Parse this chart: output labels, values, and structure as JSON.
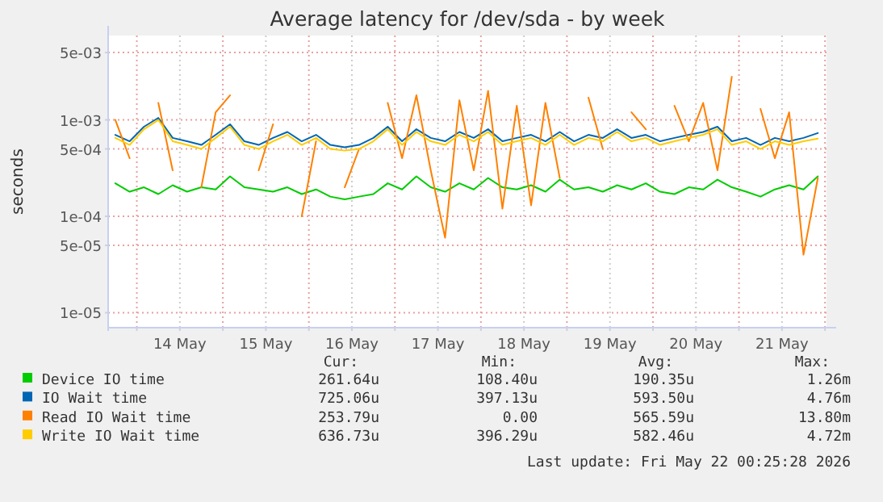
{
  "chart_data": {
    "type": "line",
    "title": "Average latency for /dev/sda - by week",
    "ylabel": "seconds",
    "log": "y",
    "grid": true,
    "legend": "bottom",
    "xlim": [
      "2026-05-13T16:00",
      "2026-05-22T00:25"
    ],
    "xticks": [
      {
        "value": "2026-05-14T00:00",
        "label": null
      },
      {
        "value": "2026-05-14T12:00",
        "label": "14 May"
      },
      {
        "value": "2026-05-15T00:00",
        "label": null
      },
      {
        "value": "2026-05-15T12:00",
        "label": "15 May"
      },
      {
        "value": "2026-05-16T00:00",
        "label": null
      },
      {
        "value": "2026-05-16T12:00",
        "label": "16 May"
      },
      {
        "value": "2026-05-17T00:00",
        "label": null
      },
      {
        "value": "2026-05-17T12:00",
        "label": "17 May"
      },
      {
        "value": "2026-05-18T00:00",
        "label": null
      },
      {
        "value": "2026-05-18T12:00",
        "label": "18 May"
      },
      {
        "value": "2026-05-19T00:00",
        "label": null
      },
      {
        "value": "2026-05-19T12:00",
        "label": "19 May"
      },
      {
        "value": "2026-05-20T00:00",
        "label": null
      },
      {
        "value": "2026-05-20T12:00",
        "label": "20 May"
      },
      {
        "value": "2026-05-21T00:00",
        "label": null
      },
      {
        "value": "2026-05-21T12:00",
        "label": "21 May"
      },
      {
        "value": "2026-05-22T00:00",
        "label": null
      }
    ],
    "ylim": [
      7e-06,
      0.0075
    ],
    "yticks": [
      {
        "value": 1e-05,
        "label": "1e-05"
      },
      {
        "value": 5e-05,
        "label": "5e-05"
      },
      {
        "value": 0.0001,
        "label": "1e-04"
      },
      {
        "value": 0.0005,
        "label": "5e-04"
      },
      {
        "value": 0.001,
        "label": "1e-03"
      },
      {
        "value": 0.005,
        "label": "5e-03"
      }
    ],
    "x": [
      "2026-05-13T18:00",
      "2026-05-13T22:00",
      "2026-05-14T02:00",
      "2026-05-14T06:00",
      "2026-05-14T10:00",
      "2026-05-14T14:00",
      "2026-05-14T18:00",
      "2026-05-14T22:00",
      "2026-05-15T02:00",
      "2026-05-15T06:00",
      "2026-05-15T10:00",
      "2026-05-15T14:00",
      "2026-05-15T18:00",
      "2026-05-15T22:00",
      "2026-05-16T02:00",
      "2026-05-16T06:00",
      "2026-05-16T10:00",
      "2026-05-16T14:00",
      "2026-05-16T18:00",
      "2026-05-16T22:00",
      "2026-05-17T02:00",
      "2026-05-17T06:00",
      "2026-05-17T10:00",
      "2026-05-17T14:00",
      "2026-05-17T18:00",
      "2026-05-17T22:00",
      "2026-05-18T02:00",
      "2026-05-18T06:00",
      "2026-05-18T10:00",
      "2026-05-18T14:00",
      "2026-05-18T18:00",
      "2026-05-18T22:00",
      "2026-05-19T02:00",
      "2026-05-19T06:00",
      "2026-05-19T10:00",
      "2026-05-19T14:00",
      "2026-05-19T18:00",
      "2026-05-19T22:00",
      "2026-05-20T02:00",
      "2026-05-20T06:00",
      "2026-05-20T10:00",
      "2026-05-20T14:00",
      "2026-05-20T18:00",
      "2026-05-20T22:00",
      "2026-05-21T02:00",
      "2026-05-21T06:00",
      "2026-05-21T10:00",
      "2026-05-21T14:00",
      "2026-05-21T18:00",
      "2026-05-21T22:00"
    ],
    "series": [
      {
        "name": "Device IO time",
        "color": "#00cc00",
        "values": [
          0.00022,
          0.00018,
          0.0002,
          0.00017,
          0.00021,
          0.00018,
          0.0002,
          0.00019,
          0.00026,
          0.0002,
          0.00019,
          0.00018,
          0.0002,
          0.00017,
          0.00019,
          0.00016,
          0.00015,
          0.00016,
          0.00017,
          0.00022,
          0.00019,
          0.00026,
          0.0002,
          0.00018,
          0.00022,
          0.00019,
          0.00025,
          0.0002,
          0.00019,
          0.00021,
          0.00018,
          0.00024,
          0.00019,
          0.0002,
          0.00018,
          0.00021,
          0.00019,
          0.00022,
          0.00018,
          0.00017,
          0.0002,
          0.00019,
          0.00024,
          0.0002,
          0.00018,
          0.00016,
          0.00019,
          0.00021,
          0.00019,
          0.00026
        ]
      },
      {
        "name": "IO Wait time",
        "color": "#0066b3",
        "values": [
          0.0007,
          0.0006,
          0.00085,
          0.00105,
          0.00065,
          0.0006,
          0.00055,
          0.0007,
          0.0009,
          0.0006,
          0.00055,
          0.00065,
          0.00075,
          0.0006,
          0.0007,
          0.00055,
          0.00052,
          0.00055,
          0.00065,
          0.00085,
          0.0006,
          0.0008,
          0.00065,
          0.0006,
          0.00075,
          0.00065,
          0.0008,
          0.0006,
          0.00065,
          0.0007,
          0.0006,
          0.00075,
          0.0006,
          0.0007,
          0.00065,
          0.0008,
          0.00065,
          0.0007,
          0.0006,
          0.00065,
          0.0007,
          0.00075,
          0.00085,
          0.0006,
          0.00065,
          0.00055,
          0.00065,
          0.0006,
          0.00065,
          0.00073
        ]
      },
      {
        "name": "Read IO Wait time",
        "color": "#ff8000",
        "values": [
          0.001,
          0.0004,
          null,
          0.0015,
          0.0003,
          null,
          0.0002,
          0.0012,
          0.0018,
          null,
          0.0003,
          0.0009,
          null,
          0.0001,
          0.0006,
          null,
          0.0002,
          0.0005,
          null,
          0.0015,
          0.0004,
          0.0018,
          0.0003,
          6e-05,
          0.0016,
          0.0003,
          0.002,
          0.00012,
          0.0014,
          0.00013,
          0.0015,
          0.00025,
          null,
          0.0017,
          0.0005,
          null,
          0.0012,
          0.0008,
          null,
          0.0014,
          0.0006,
          0.0015,
          0.0003,
          0.0028,
          null,
          0.0013,
          0.0004,
          0.0012,
          4e-05,
          0.00025
        ]
      },
      {
        "name": "Write IO Wait time",
        "color": "#ffcc00",
        "values": [
          0.00065,
          0.00055,
          0.0008,
          0.001,
          0.0006,
          0.00055,
          0.0005,
          0.00065,
          0.00085,
          0.00055,
          0.0005,
          0.0006,
          0.0007,
          0.00055,
          0.00065,
          0.0005,
          0.00048,
          0.0005,
          0.0006,
          0.0008,
          0.00055,
          0.00075,
          0.0006,
          0.00055,
          0.0007,
          0.0006,
          0.00075,
          0.00055,
          0.0006,
          0.00065,
          0.00055,
          0.0007,
          0.00055,
          0.00065,
          0.0006,
          0.00075,
          0.0006,
          0.00065,
          0.00055,
          0.0006,
          0.00065,
          0.0007,
          0.0008,
          0.00055,
          0.0006,
          0.0005,
          0.0006,
          0.00055,
          0.0006,
          0.00064
        ]
      }
    ],
    "annotations": [
      "Cur:",
      "Min:",
      "Avg:",
      "Max:",
      "261.64u",
      "108.40u",
      "190.35u",
      "1.26m",
      "725.06u",
      "397.13u",
      "593.50u",
      "4.76m",
      "253.79u",
      "0.00",
      "565.59u",
      "13.80m",
      "636.73u",
      "396.29u",
      "582.46u",
      "4.72m",
      "Last update: Fri May 22 00:25:28 2026"
    ]
  }
}
